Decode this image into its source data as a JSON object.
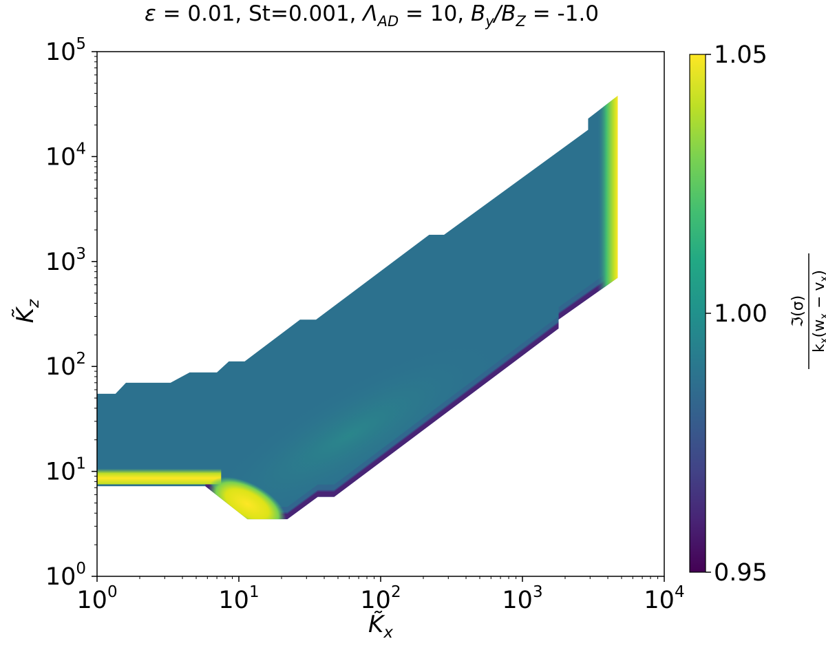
{
  "chart_data": {
    "type": "heatmap",
    "title": "ε = 0.01, St=0.001, Λ_AD = 10, B_y/B_Z = -1.0",
    "title_parts": {
      "eps": "ε",
      "eps_value": " = 0.01, St=0.001, ",
      "lambda": "Λ",
      "lambda_sub": "AD",
      "lambda_value": " = 10, ",
      "by": "B",
      "by_sub": "y",
      "slash": "/",
      "bz": "B",
      "bz_sub": "Z",
      "bz_value": " = -1.0"
    },
    "xlabel": "K̃",
    "xlabel_sub": "x",
    "ylabel": "K̃",
    "ylabel_sub": "z",
    "xscale": "log",
    "yscale": "log",
    "xlim": [
      1,
      10000
    ],
    "ylim": [
      1,
      100000
    ],
    "x_ticks": [
      {
        "value": 1,
        "base": "10",
        "exp": "0"
      },
      {
        "value": 10,
        "base": "10",
        "exp": "1"
      },
      {
        "value": 100,
        "base": "10",
        "exp": "2"
      },
      {
        "value": 1000,
        "base": "10",
        "exp": "3"
      },
      {
        "value": 10000,
        "base": "10",
        "exp": "4"
      }
    ],
    "y_ticks": [
      {
        "value": 1,
        "base": "10",
        "exp": "0"
      },
      {
        "value": 10,
        "base": "10",
        "exp": "1"
      },
      {
        "value": 100,
        "base": "10",
        "exp": "2"
      },
      {
        "value": 1000,
        "base": "10",
        "exp": "3"
      },
      {
        "value": 10000,
        "base": "10",
        "exp": "4"
      },
      {
        "value": 100000,
        "base": "10",
        "exp": "5"
      }
    ],
    "colorbar": {
      "colormap": "viridis",
      "vmin": 0.95,
      "vmax": 1.05,
      "ticks": [
        {
          "value": 0.95,
          "label": "0.95"
        },
        {
          "value": 1.0,
          "label": "1.00"
        },
        {
          "value": 1.05,
          "label": "1.05"
        }
      ],
      "label": "ℑ(σ) / k_x(w_x − v_x)",
      "label_numerator": "ℑ(σ)",
      "label_denominator": "k",
      "label_den_sub": "x",
      "label_den_rest": "(w",
      "label_den_sub2": "x",
      "label_den_rest2": " − v",
      "label_den_sub3": "x",
      "label_den_close": ")"
    },
    "domain_upper_boundary": [
      [
        1,
        55
      ],
      [
        1.35,
        55
      ],
      [
        1.6,
        70
      ],
      [
        3.3,
        70
      ],
      [
        4.5,
        88
      ],
      [
        7,
        88
      ],
      [
        8.5,
        112
      ],
      [
        11,
        112
      ],
      [
        27,
        280
      ],
      [
        35,
        280
      ],
      [
        220,
        1800
      ],
      [
        280,
        1800
      ],
      [
        2900,
        18000
      ],
      [
        2900,
        23000
      ],
      [
        4700,
        38000
      ]
    ],
    "domain_right_edge": [
      [
        4700,
        38000
      ],
      [
        4700,
        700
      ]
    ],
    "domain_lower_boundary": [
      [
        4700,
        700
      ],
      [
        1800,
        280
      ],
      [
        1800,
        230
      ],
      [
        47,
        5.7
      ],
      [
        36,
        5.7
      ],
      [
        22,
        3.5
      ],
      [
        11.5,
        3.5
      ],
      [
        5.8,
        7.2
      ],
      [
        1,
        7.2
      ]
    ],
    "field_value_interior": 0.995,
    "regions": [
      {
        "name": "bulk",
        "value": 0.995
      },
      {
        "name": "diagonal-ridge",
        "value": 1.005
      },
      {
        "name": "bright-band-low-kz",
        "x_range": [
          1,
          6
        ],
        "y_range": [
          8,
          10
        ],
        "value": 1.05
      },
      {
        "name": "bright-blob-near-kx-10",
        "x_range": [
          7,
          20
        ],
        "y_range": [
          4,
          7
        ],
        "value": 1.05
      },
      {
        "name": "right-edge-strip",
        "x_value": 4700,
        "value": 1.05
      },
      {
        "name": "lower-edge-strip",
        "value": 0.95
      }
    ]
  }
}
